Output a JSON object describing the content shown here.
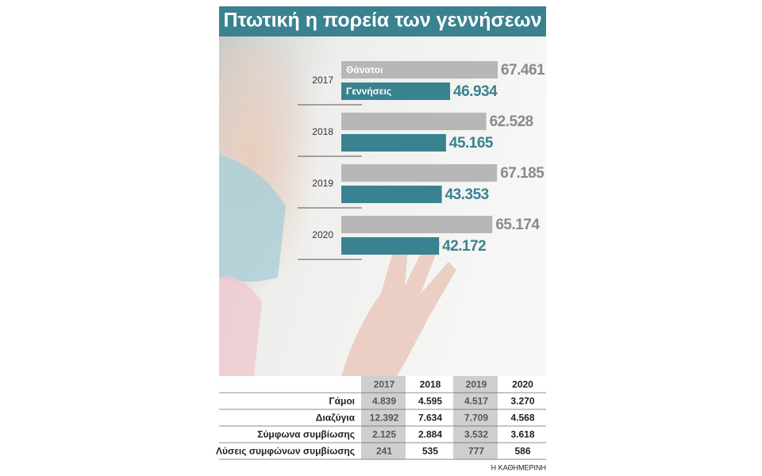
{
  "chart_data": {
    "type": "hbar",
    "title": "Πτωτική η πορεία των γεννήσεων",
    "categories": [
      "2017",
      "2018",
      "2019",
      "2020"
    ],
    "series": [
      {
        "name": "Θάνατοι",
        "color": "#b7b7b7",
        "label_color": "#8a8a8a",
        "values": [
          67461,
          62528,
          67185,
          65174
        ],
        "value_labels": [
          "67.461",
          "62.528",
          "67.185",
          "65.174"
        ]
      },
      {
        "name": "Γεννήσεις",
        "color": "#3a8290",
        "label_color": "#3a8290",
        "values": [
          46934,
          45165,
          43353,
          42172
        ],
        "value_labels": [
          "46.934",
          "45.165",
          "43.353",
          "42.172"
        ]
      }
    ],
    "legend": "inside-first-bars"
  },
  "table": {
    "columns": [
      "2017",
      "2018",
      "2019",
      "2020"
    ],
    "rows": [
      [
        "Γάμοι",
        "4.839",
        "4.595",
        "4.517",
        "3.270"
      ],
      [
        "Διαζύγια",
        "12.392",
        "7.634",
        "7.709",
        "4.568"
      ],
      [
        "Σύμφωνα συμβίωσης",
        "2.125",
        "2.884",
        "3.532",
        "3.618"
      ],
      [
        "Λύσεις συμφώνων συμβίωσης",
        "241",
        "535",
        "777",
        "586"
      ]
    ]
  },
  "source": "Η ΚΑΘΗΜΕΡΙΝΗ"
}
